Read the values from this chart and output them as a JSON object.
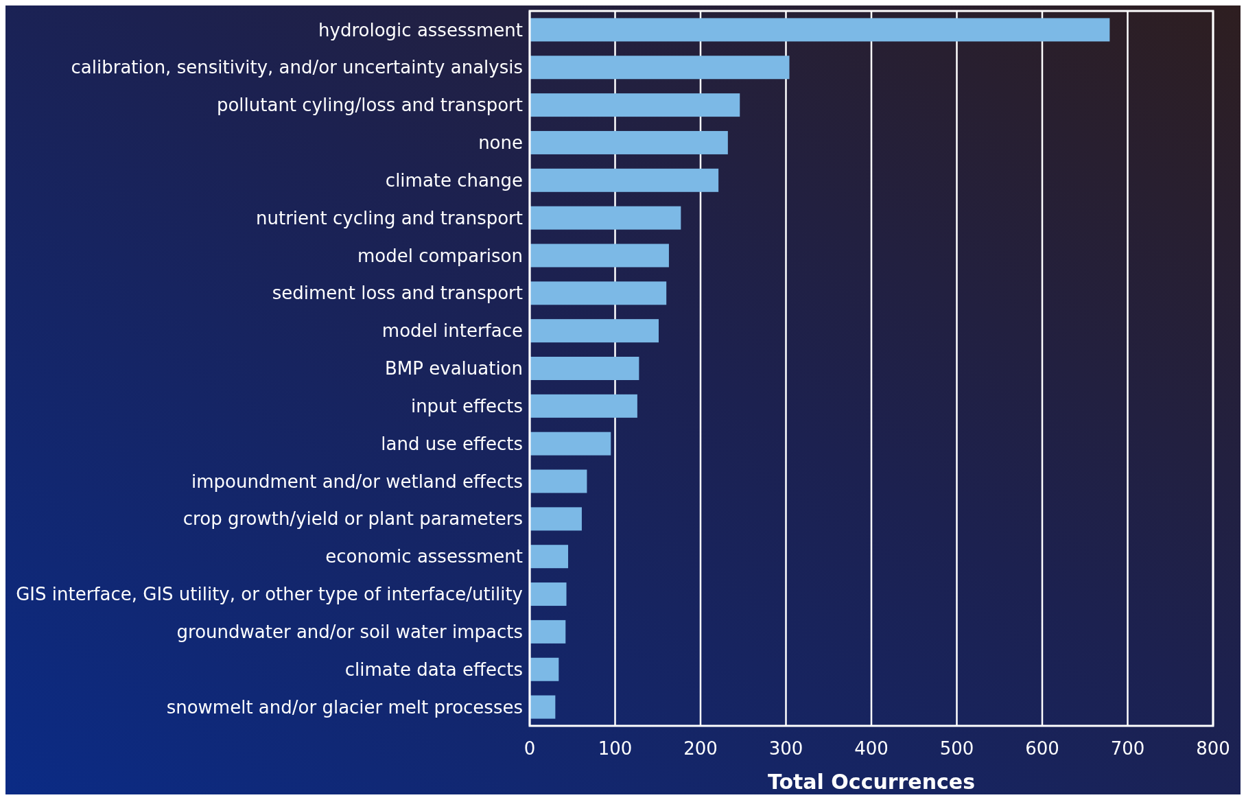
{
  "chart_data": {
    "type": "bar",
    "orientation": "horizontal",
    "xlabel": "Total Occurrences",
    "categories": [
      "hydrologic assessment",
      "calibration, sensitivity, and/or uncertainty analysis",
      "pollutant cyling/loss and transport",
      "none",
      "climate change",
      "nutrient cycling and transport",
      "model comparison",
      "sediment loss and transport",
      "model interface",
      "BMP evaluation",
      "input effects",
      "land use effects",
      "impoundment and/or wetland effects",
      "crop growth/yield or plant parameters",
      "economic assessment",
      "GIS interface, GIS utility, or other type of interface/utility",
      "groundwater and/or soil water impacts",
      "climate data effects",
      "snowmelt and/or glacier melt processes"
    ],
    "values": [
      679,
      304,
      246,
      232,
      221,
      177,
      163,
      160,
      151,
      128,
      126,
      95,
      67,
      61,
      45,
      43,
      42,
      34,
      30
    ],
    "color": "#7cb9e6",
    "xlim": [
      0,
      800
    ],
    "xticks": [
      0,
      100,
      200,
      300,
      400,
      500,
      600,
      700,
      800
    ],
    "grid": "x"
  }
}
